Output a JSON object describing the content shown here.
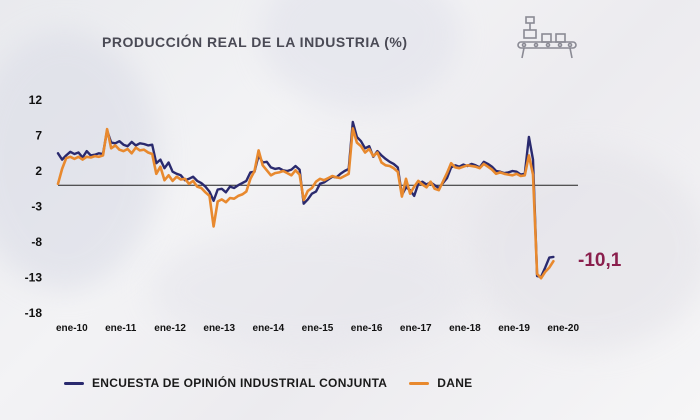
{
  "chart_data": {
    "type": "line",
    "title": "PRODUCCIÓN REAL DE LA INDUSTRIA (%)",
    "xlabel": "",
    "ylabel": "",
    "ylim": [
      -18,
      12
    ],
    "yticks": [
      12,
      7,
      2,
      -3,
      -8,
      -13,
      -18
    ],
    "x_tick_labels": [
      "ene-10",
      "ene-11",
      "ene-12",
      "ene-13",
      "ene-14",
      "ene-15",
      "ene-16",
      "ene-17",
      "ene-18",
      "ene-19",
      "ene-20"
    ],
    "x_index_range": [
      0,
      127
    ],
    "series": [
      {
        "name": "ENCUESTA DE OPINIÓN INDUSTRIAL CONJUNTA",
        "color": "#2a2a6e",
        "points": [
          [
            0,
            4.5
          ],
          [
            1,
            3.6
          ],
          [
            2,
            4.2
          ],
          [
            3,
            4.7
          ],
          [
            4,
            4.4
          ],
          [
            5,
            4.6
          ],
          [
            6,
            3.9
          ],
          [
            7,
            4.8
          ],
          [
            8,
            4.2
          ],
          [
            9,
            4.3
          ],
          [
            10,
            4.5
          ],
          [
            11,
            4.4
          ],
          [
            12,
            7.7
          ],
          [
            13,
            6.0
          ],
          [
            14,
            5.9
          ],
          [
            15,
            6.2
          ],
          [
            16,
            5.7
          ],
          [
            17,
            5.5
          ],
          [
            18,
            6.1
          ],
          [
            19,
            5.6
          ],
          [
            20,
            5.9
          ],
          [
            21,
            5.8
          ],
          [
            22,
            5.6
          ],
          [
            23,
            5.7
          ],
          [
            24,
            3.1
          ],
          [
            25,
            3.6
          ],
          [
            26,
            2.4
          ],
          [
            27,
            3.2
          ],
          [
            28,
            1.9
          ],
          [
            29,
            1.6
          ],
          [
            30,
            1.4
          ],
          [
            31,
            0.7
          ],
          [
            32,
            0.9
          ],
          [
            33,
            1.2
          ],
          [
            34,
            0.6
          ],
          [
            35,
            0.3
          ],
          [
            36,
            -0.2
          ],
          [
            37,
            -0.9
          ],
          [
            38,
            -2.2
          ],
          [
            39,
            -0.6
          ],
          [
            40,
            -0.5
          ],
          [
            41,
            -1.0
          ],
          [
            42,
            -0.2
          ],
          [
            43,
            -0.4
          ],
          [
            44,
            0.0
          ],
          [
            45,
            0.3
          ],
          [
            46,
            0.6
          ],
          [
            47,
            1.8
          ],
          [
            48,
            1.9
          ],
          [
            49,
            4.2
          ],
          [
            50,
            3.2
          ],
          [
            51,
            3.3
          ],
          [
            52,
            2.5
          ],
          [
            53,
            2.3
          ],
          [
            54,
            2.4
          ],
          [
            55,
            2.1
          ],
          [
            56,
            2.0
          ],
          [
            57,
            2.2
          ],
          [
            58,
            2.7
          ],
          [
            59,
            2.2
          ],
          [
            60,
            -2.6
          ],
          [
            61,
            -2.0
          ],
          [
            62,
            -1.2
          ],
          [
            63,
            -0.9
          ],
          [
            64,
            0.2
          ],
          [
            65,
            0.4
          ],
          [
            66,
            0.8
          ],
          [
            67,
            1.2
          ],
          [
            68,
            1.1
          ],
          [
            69,
            1.6
          ],
          [
            70,
            2.0
          ],
          [
            71,
            2.3
          ],
          [
            72,
            8.9
          ],
          [
            73,
            6.8
          ],
          [
            74,
            6.2
          ],
          [
            75,
            5.2
          ],
          [
            76,
            5.5
          ],
          [
            77,
            4.0
          ],
          [
            78,
            4.8
          ],
          [
            79,
            4.2
          ],
          [
            80,
            3.7
          ],
          [
            81,
            3.3
          ],
          [
            82,
            3.0
          ],
          [
            83,
            2.5
          ],
          [
            84,
            -1.4
          ],
          [
            85,
            -0.3
          ],
          [
            86,
            -0.7
          ],
          [
            87,
            -1.5
          ],
          [
            88,
            0.2
          ],
          [
            89,
            0.5
          ],
          [
            90,
            0.1
          ],
          [
            91,
            0.4
          ],
          [
            92,
            0.0
          ],
          [
            93,
            -0.4
          ],
          [
            94,
            0.3
          ],
          [
            95,
            1.0
          ],
          [
            96,
            2.5
          ],
          [
            97,
            2.8
          ],
          [
            98,
            2.6
          ],
          [
            99,
            2.9
          ],
          [
            100,
            2.7
          ],
          [
            101,
            3.0
          ],
          [
            102,
            2.8
          ],
          [
            103,
            2.5
          ],
          [
            104,
            3.3
          ],
          [
            105,
            3.0
          ],
          [
            106,
            2.6
          ],
          [
            107,
            2.0
          ],
          [
            108,
            1.9
          ],
          [
            109,
            1.7
          ],
          [
            110,
            1.8
          ],
          [
            111,
            2.0
          ],
          [
            112,
            1.9
          ],
          [
            113,
            1.5
          ],
          [
            114,
            1.6
          ],
          [
            115,
            6.8
          ],
          [
            116,
            3.6
          ],
          [
            117,
            -12.8
          ],
          [
            118,
            -12.9
          ],
          [
            119,
            -11.6
          ],
          [
            120,
            -10.2
          ],
          [
            121,
            -10.1
          ]
        ]
      },
      {
        "name": "DANE",
        "color": "#e8892e",
        "points": [
          [
            0,
            0.2
          ],
          [
            1,
            2.3
          ],
          [
            2,
            3.8
          ],
          [
            3,
            4.0
          ],
          [
            4,
            3.7
          ],
          [
            5,
            4.0
          ],
          [
            6,
            3.6
          ],
          [
            7,
            4.0
          ],
          [
            8,
            3.9
          ],
          [
            9,
            4.1
          ],
          [
            10,
            4.0
          ],
          [
            11,
            4.2
          ],
          [
            12,
            7.9
          ],
          [
            13,
            5.2
          ],
          [
            14,
            5.6
          ],
          [
            15,
            5.0
          ],
          [
            16,
            4.8
          ],
          [
            17,
            5.1
          ],
          [
            18,
            4.5
          ],
          [
            19,
            5.3
          ],
          [
            20,
            4.9
          ],
          [
            21,
            5.0
          ],
          [
            22,
            4.6
          ],
          [
            23,
            4.4
          ],
          [
            24,
            1.6
          ],
          [
            25,
            2.6
          ],
          [
            26,
            0.7
          ],
          [
            27,
            1.4
          ],
          [
            28,
            0.6
          ],
          [
            29,
            1.2
          ],
          [
            30,
            0.8
          ],
          [
            31,
            0.9
          ],
          [
            32,
            0.2
          ],
          [
            33,
            0.6
          ],
          [
            34,
            -0.2
          ],
          [
            35,
            -0.4
          ],
          [
            36,
            -1.0
          ],
          [
            37,
            -1.5
          ],
          [
            38,
            -5.8
          ],
          [
            39,
            -2.3
          ],
          [
            40,
            -2.0
          ],
          [
            41,
            -2.4
          ],
          [
            42,
            -1.8
          ],
          [
            43,
            -1.9
          ],
          [
            44,
            -1.5
          ],
          [
            45,
            -1.3
          ],
          [
            46,
            -0.9
          ],
          [
            47,
            0.9
          ],
          [
            48,
            2.0
          ],
          [
            49,
            4.9
          ],
          [
            50,
            2.8
          ],
          [
            51,
            2.1
          ],
          [
            52,
            1.4
          ],
          [
            53,
            1.7
          ],
          [
            54,
            1.8
          ],
          [
            55,
            2.0
          ],
          [
            56,
            1.7
          ],
          [
            57,
            1.4
          ],
          [
            58,
            2.1
          ],
          [
            59,
            1.5
          ],
          [
            60,
            -2.1
          ],
          [
            61,
            -0.8
          ],
          [
            62,
            -0.4
          ],
          [
            63,
            0.5
          ],
          [
            64,
            0.9
          ],
          [
            65,
            0.7
          ],
          [
            66,
            1.0
          ],
          [
            67,
            1.3
          ],
          [
            68,
            1.1
          ],
          [
            69,
            1.0
          ],
          [
            70,
            1.3
          ],
          [
            71,
            1.6
          ],
          [
            72,
            8.0
          ],
          [
            73,
            6.0
          ],
          [
            74,
            5.5
          ],
          [
            75,
            4.6
          ],
          [
            76,
            5.1
          ],
          [
            77,
            4.1
          ],
          [
            78,
            4.6
          ],
          [
            79,
            3.2
          ],
          [
            80,
            2.8
          ],
          [
            81,
            2.7
          ],
          [
            82,
            2.4
          ],
          [
            83,
            1.9
          ],
          [
            84,
            -1.6
          ],
          [
            85,
            0.9
          ],
          [
            86,
            -1.2
          ],
          [
            87,
            -0.2
          ],
          [
            88,
            0.6
          ],
          [
            89,
            0.1
          ],
          [
            90,
            -0.3
          ],
          [
            91,
            0.5
          ],
          [
            92,
            -0.5
          ],
          [
            93,
            -0.7
          ],
          [
            94,
            0.5
          ],
          [
            95,
            1.7
          ],
          [
            96,
            3.1
          ],
          [
            97,
            2.5
          ],
          [
            98,
            2.4
          ],
          [
            99,
            2.6
          ],
          [
            100,
            2.8
          ],
          [
            101,
            2.7
          ],
          [
            102,
            2.6
          ],
          [
            103,
            2.4
          ],
          [
            104,
            3.0
          ],
          [
            105,
            2.6
          ],
          [
            106,
            2.2
          ],
          [
            107,
            1.6
          ],
          [
            108,
            1.8
          ],
          [
            109,
            1.6
          ],
          [
            110,
            1.5
          ],
          [
            111,
            1.4
          ],
          [
            112,
            1.6
          ],
          [
            113,
            1.3
          ],
          [
            114,
            1.4
          ],
          [
            115,
            4.2
          ],
          [
            116,
            1.5
          ],
          [
            117,
            -12.5
          ],
          [
            118,
            -13.1
          ],
          [
            119,
            -12.2
          ],
          [
            120,
            -11.6
          ],
          [
            121,
            -10.7
          ]
        ]
      }
    ],
    "zero_line": true,
    "grid": false,
    "legend_position": "bottom",
    "last_value_label": "-10,1"
  },
  "legend": {
    "items": [
      {
        "label": "ENCUESTA DE OPINIÓN INDUSTRIAL CONJUNTA",
        "color": "#2a2a6e"
      },
      {
        "label": "DANE",
        "color": "#e8892e"
      }
    ]
  },
  "icon": {
    "name": "factory-conveyor-icon"
  }
}
